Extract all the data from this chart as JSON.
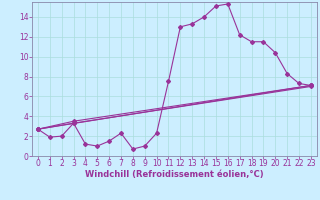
{
  "xlabel": "Windchill (Refroidissement éolien,°C)",
  "background_color": "#cceeff",
  "grid_color": "#aadddd",
  "line_color": "#993399",
  "spine_color": "#8888aa",
  "xlim": [
    -0.5,
    23.5
  ],
  "ylim": [
    0,
    15.5
  ],
  "xticks": [
    0,
    1,
    2,
    3,
    4,
    5,
    6,
    7,
    8,
    9,
    10,
    11,
    12,
    13,
    14,
    15,
    16,
    17,
    18,
    19,
    20,
    21,
    22,
    23
  ],
  "yticks": [
    0,
    2,
    4,
    6,
    8,
    10,
    12,
    14
  ],
  "line1_x": [
    0,
    1,
    2,
    3,
    4,
    5,
    6,
    7,
    8,
    9,
    10,
    11,
    12,
    13,
    14,
    15,
    16,
    17,
    18,
    19,
    20,
    21,
    22,
    23
  ],
  "line1_y": [
    2.7,
    1.9,
    2.0,
    3.3,
    1.2,
    1.0,
    1.5,
    2.3,
    0.7,
    1.0,
    2.3,
    7.5,
    13.0,
    13.3,
    14.0,
    15.1,
    15.3,
    12.2,
    11.5,
    11.5,
    10.4,
    8.3,
    7.3,
    7.1
  ],
  "line2_x": [
    0,
    23
  ],
  "line2_y": [
    2.7,
    7.1
  ],
  "line3_x": [
    0,
    3,
    23
  ],
  "line3_y": [
    2.7,
    3.5,
    7.1
  ],
  "line4_x": [
    0,
    3,
    23
  ],
  "line4_y": [
    2.7,
    3.3,
    7.0
  ],
  "tick_fontsize": 5.5,
  "xlabel_fontsize": 6.0,
  "marker_size": 2.0,
  "linewidth": 0.8
}
